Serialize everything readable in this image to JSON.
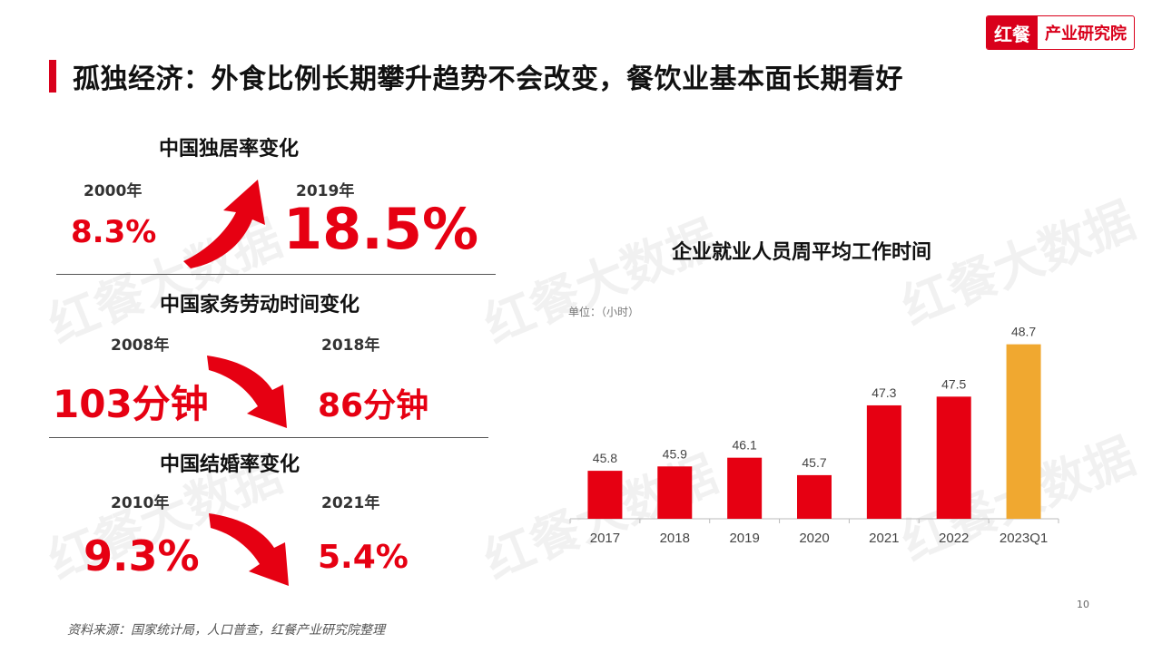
{
  "header": {
    "title": "孤独经济：外食比例长期攀升趋势不会改变，餐饮业基本面长期看好",
    "logo_mark": "红餐",
    "logo_text": "产业研究院"
  },
  "watermark": "红餐大数据",
  "stats": [
    {
      "title": "中国独居率变化",
      "from_year": "2000年",
      "from_value": "8.3%",
      "to_year": "2019年",
      "to_value": "18.5%",
      "trend": "up"
    },
    {
      "title": "中国家务劳动时间变化",
      "from_year": "2008年",
      "from_value": "103分钟",
      "to_year": "2018年",
      "to_value": "86分钟",
      "trend": "down"
    },
    {
      "title": "中国结婚率变化",
      "from_year": "2010年",
      "from_value": "9.3%",
      "to_year": "2021年",
      "to_value": "5.4%",
      "trend": "down"
    }
  ],
  "chart_data": {
    "type": "bar",
    "title": "企业就业人员周平均工作时间",
    "unit_label": "单位：（小时）",
    "categories": [
      "2017",
      "2018",
      "2019",
      "2020",
      "2021",
      "2022",
      "2023Q1"
    ],
    "values": [
      45.8,
      45.9,
      46.1,
      45.7,
      47.3,
      47.5,
      48.7
    ],
    "colors": [
      "#e60012",
      "#e60012",
      "#e60012",
      "#e60012",
      "#e60012",
      "#e60012",
      "#f0a830"
    ],
    "ylim": [
      44.7,
      48.9
    ],
    "grid": false
  },
  "footer": {
    "page_number": "10",
    "source": "资料来源：国家统计局，人口普查，红餐产业研究院整理"
  },
  "colors": {
    "accent": "#d9001b",
    "highlight": "#f0a830",
    "arrow": "#e60012"
  }
}
